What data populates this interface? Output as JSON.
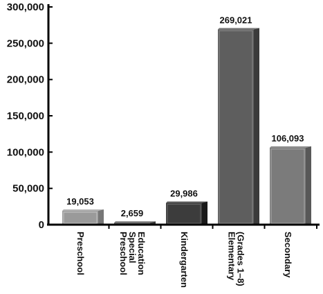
{
  "chart_data": {
    "type": "bar",
    "categories": [
      [
        "Preschool"
      ],
      [
        "Preschool",
        "Special",
        "Education"
      ],
      [
        "Kindergarten"
      ],
      [
        "Elementary",
        "(Grades 1–8)"
      ],
      [
        "Secondary"
      ]
    ],
    "values": [
      19053,
      2659,
      29986,
      269021,
      106093
    ],
    "value_labels": [
      "19,053",
      "2,659",
      "29,986",
      "269,021",
      "106,093"
    ],
    "yticks": [
      0,
      50000,
      100000,
      150000,
      200000,
      250000,
      300000
    ],
    "ytick_labels": [
      "0",
      "50,000",
      "100,000",
      "150,000",
      "200,000",
      "250,000",
      "300,000"
    ],
    "ylim": [
      0,
      300000
    ],
    "title": "",
    "xlabel": "",
    "ylabel": "",
    "grid": false,
    "bar_colors": [
      "#9a9a9a",
      "#5a5a5a",
      "#3c3c3c",
      "#5e5e5e",
      "#7b7b7b"
    ]
  }
}
